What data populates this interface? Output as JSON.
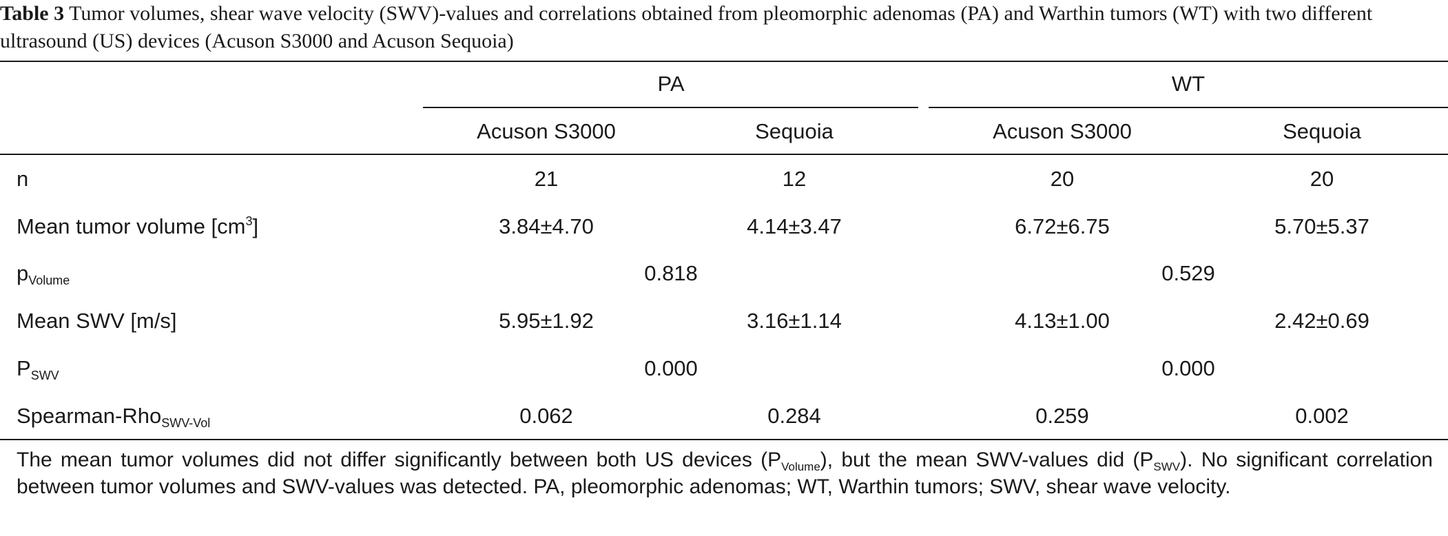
{
  "caption": {
    "label": "Table 3",
    "text": "Tumor volumes, shear wave velocity (SWV)-values and correlations obtained from pleomorphic adenomas (PA) and Warthin tumors (WT) with two different ultrasound (US) devices (Acuson S3000 and Acuson Sequoia)"
  },
  "table": {
    "groups": [
      "PA",
      "WT"
    ],
    "devices": [
      "Acuson S3000",
      "Sequoia",
      "Acuson S3000",
      "Sequoia"
    ],
    "rows": {
      "n": {
        "label": "n",
        "values": [
          "21",
          "12",
          "20",
          "20"
        ]
      },
      "volume": {
        "label": "Mean tumor volume [cm",
        "sup": "3",
        "label_end": "]",
        "values": [
          "3.84±4.70",
          "4.14±3.47",
          "6.72±6.75",
          "5.70±5.37"
        ]
      },
      "p_volume": {
        "label": "p",
        "sub": "Volume",
        "values": [
          "0.818",
          "0.529"
        ]
      },
      "swv": {
        "label": "Mean SWV [m/s]",
        "values": [
          "5.95±1.92",
          "3.16±1.14",
          "4.13±1.00",
          "2.42±0.69"
        ]
      },
      "p_swv": {
        "label": "P",
        "sub": "SWV",
        "values": [
          "0.000",
          "0.000"
        ]
      },
      "rho": {
        "label": "Spearman-Rho",
        "sub": "SWV-Vol",
        "values": [
          "0.062",
          "0.284",
          "0.259",
          "0.002"
        ]
      }
    }
  },
  "footnote": {
    "part1": "The mean tumor volumes did not differ significantly between both US devices (P",
    "sub1": "Volume",
    "part2": "), but the mean SWV-values did (P",
    "sub2": "SWV",
    "part3": "). No significant correlation between tumor volumes and SWV-values was detected. PA, pleomorphic adenomas; WT, Warthin tumors; SWV, shear wave velocity."
  }
}
